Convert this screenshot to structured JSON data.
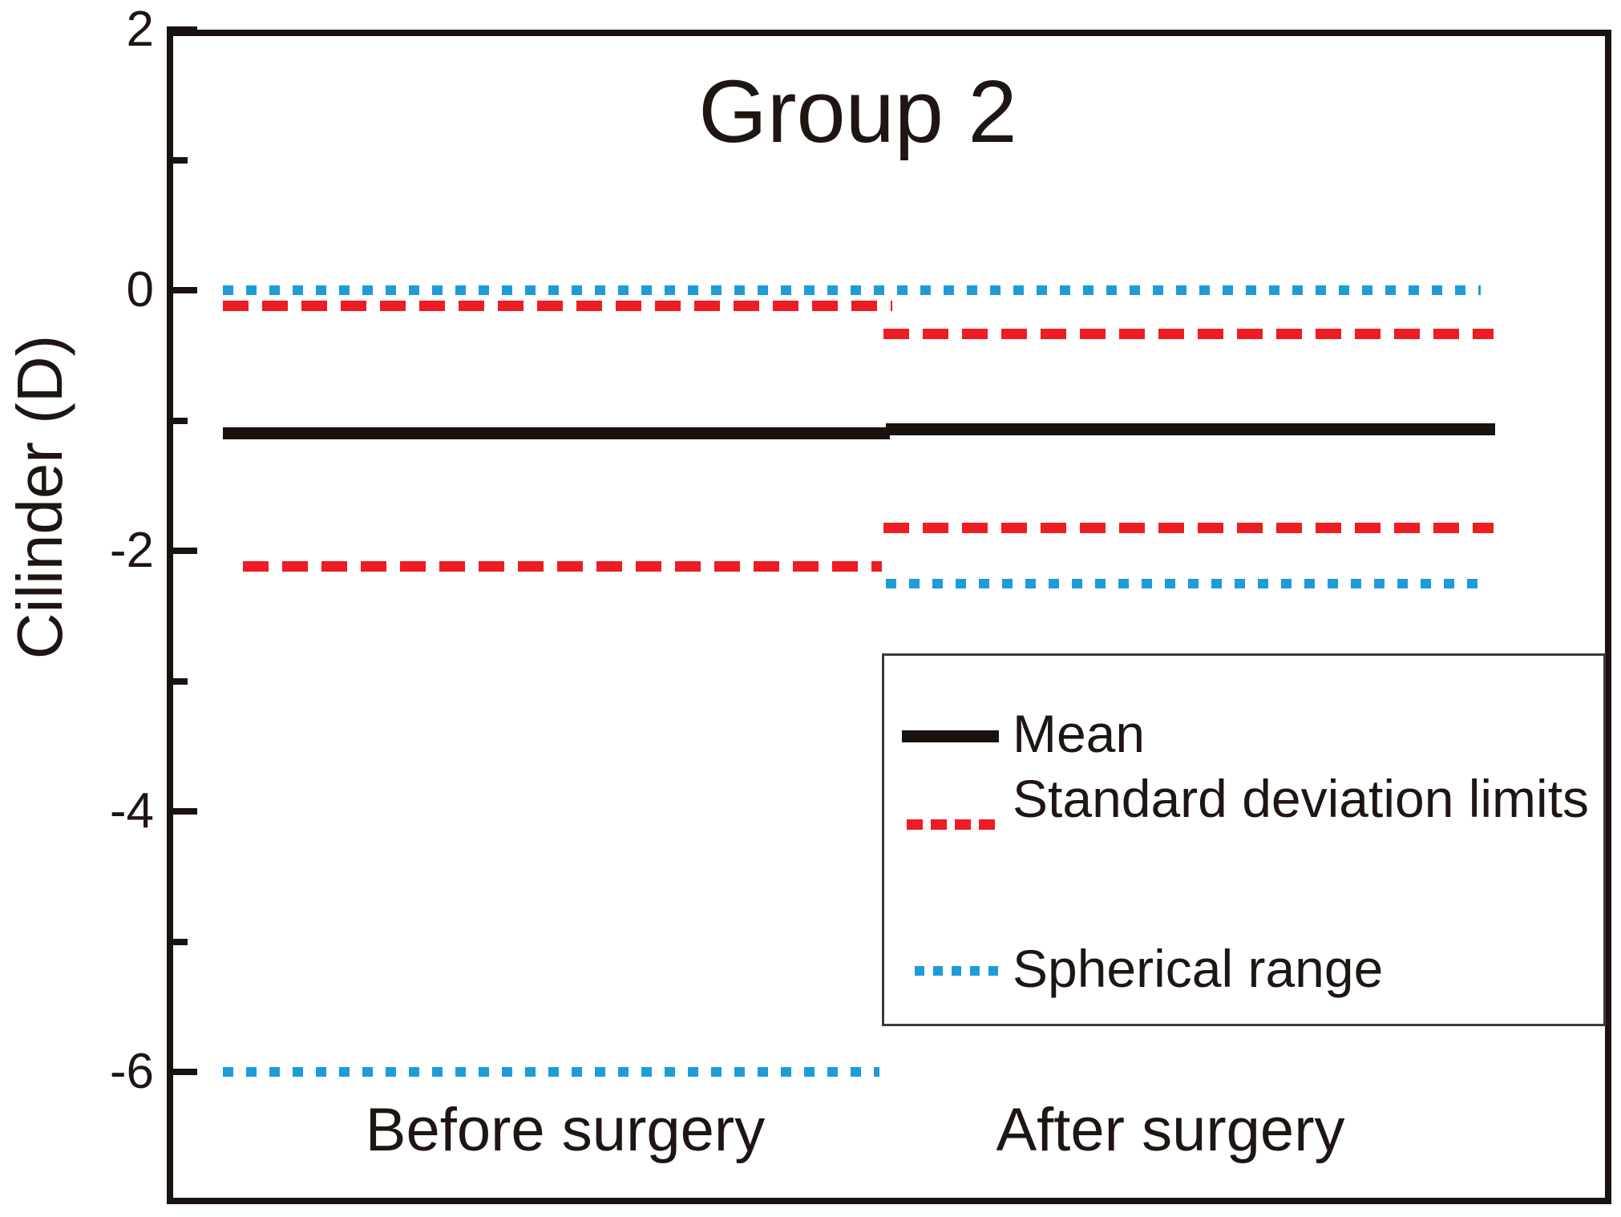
{
  "figure": {
    "title": "Group 2",
    "y_axis": {
      "label": "Cilinder (D)",
      "tick_labels": [
        "2",
        "0",
        "-2",
        "-4",
        "-6"
      ]
    },
    "x_axis": {
      "category_labels": [
        "Before surgery",
        "After surgery"
      ]
    }
  },
  "legend": {
    "position": "inside-lower-right",
    "items": [
      {
        "label": "Mean",
        "line_style": "solid",
        "color": "#1a120e"
      },
      {
        "label": "Standard deviation limits",
        "line_style": "dashed",
        "color": "#ee1c23"
      },
      {
        "label": "Spherical range",
        "line_style": "dotted",
        "color": "#1e9cd8"
      }
    ]
  },
  "chart_data": {
    "type": "line",
    "title": "Group 2",
    "xlabel": "",
    "ylabel": "Cilinder (D)",
    "categories": [
      "Before surgery",
      "After surgery"
    ],
    "ylim": [
      -7,
      2
    ],
    "yticks_major": [
      2,
      0,
      -2,
      -4,
      -6
    ],
    "yticks_minor": [
      1,
      -1,
      -3,
      -5
    ],
    "grid": false,
    "legend_position": "inside lower right",
    "series": [
      {
        "name": "Mean",
        "style": "solid",
        "color": "#1a120e",
        "values": {
          "before": -1.1,
          "after": -1.07
        }
      },
      {
        "name": "Standard deviation limits",
        "style": "dashed",
        "color": "#ee1c23",
        "values": {
          "before_upper": -0.12,
          "before_lower": -2.12,
          "after_upper": -0.34,
          "after_lower": -1.83
        }
      },
      {
        "name": "Spherical range",
        "style": "dotted",
        "color": "#1e9cd8",
        "values": {
          "before_upper": 0.0,
          "before_lower": -6.0,
          "after_upper": 0.0,
          "after_lower": -2.25
        }
      }
    ]
  }
}
